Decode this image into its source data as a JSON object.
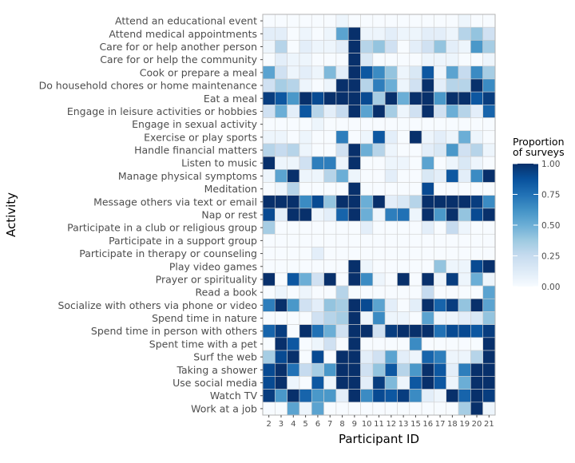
{
  "chart_data": {
    "type": "heatmap",
    "xlabel": "Participant ID",
    "ylabel": "Activity",
    "legend": {
      "title_line1": "Proportion",
      "title_line2": "of surveys",
      "ticks": [
        "1.00",
        "0.75",
        "0.50",
        "0.25",
        "0.00"
      ],
      "range": [
        0,
        1
      ],
      "placement": "right"
    },
    "colorscale": [
      "#f7fbff",
      "#deebf7",
      "#c6dbef",
      "#9ecae1",
      "#6baed6",
      "#4292c6",
      "#2171b5",
      "#08519c",
      "#08306b"
    ],
    "x": [
      "2",
      "3",
      "4",
      "5",
      "6",
      "7",
      "8",
      "9",
      "10",
      "11",
      "12",
      "13",
      "15",
      "16",
      "17",
      "18",
      "19",
      "20",
      "21"
    ],
    "y": [
      "Attend an educational event",
      "Attend medical appointments",
      "Care for or help another person",
      "Care for or help the community",
      "Cook or prepare a meal",
      "Do household chores or home maintenance",
      "Eat a meal",
      "Engage in leisure activities or hobbies",
      "Engage in sexual activity",
      "Exercise or play sports",
      "Handle financial matters",
      "Listen to music",
      "Manage physical symptoms",
      "Meditation",
      "Message others via text or email",
      "Nap or rest",
      "Participate in a club or religious group",
      "Participate in a support group",
      "Participate in therapy or counseling",
      "Play video games",
      "Prayer or spirituality",
      "Read a book",
      "Socialize with others via phone or video",
      "Spend time in nature",
      "Spend time in person with others",
      "Spent time with a pet",
      "Surf the web",
      "Taking a shower",
      "Use social media",
      "Watch TV",
      "Work at a job"
    ],
    "z": [
      [
        0.0,
        0.0,
        0.0,
        0.0,
        0.0,
        0.0,
        0.05,
        0.0,
        0.0,
        0.0,
        0.0,
        0.0,
        0.0,
        0.0,
        0.0,
        0.0,
        0.05,
        0.0,
        0.0
      ],
      [
        0.1,
        0.1,
        0.0,
        0.05,
        0.0,
        0.05,
        0.55,
        1.0,
        0.05,
        0.05,
        0.1,
        0.05,
        0.05,
        0.1,
        0.1,
        0.05,
        0.3,
        0.4,
        0.2
      ],
      [
        0.05,
        0.3,
        0.0,
        0.1,
        0.05,
        0.05,
        0.1,
        1.0,
        0.3,
        0.4,
        0.2,
        0.0,
        0.1,
        0.2,
        0.4,
        0.1,
        0.05,
        0.6,
        0.35
      ],
      [
        0.0,
        0.1,
        0.05,
        0.05,
        0.0,
        0.0,
        0.0,
        1.0,
        0.15,
        0.0,
        0.0,
        0.0,
        0.0,
        0.05,
        0.05,
        0.05,
        0.0,
        0.0,
        0.05
      ],
      [
        0.55,
        0.2,
        0.05,
        0.1,
        0.05,
        0.45,
        0.1,
        1.0,
        0.85,
        0.65,
        0.4,
        0.05,
        0.15,
        0.85,
        0.05,
        0.55,
        0.25,
        0.65,
        0.35
      ],
      [
        0.2,
        0.35,
        0.3,
        0.05,
        0.0,
        0.05,
        1.0,
        1.0,
        0.3,
        0.7,
        0.5,
        0.05,
        0.2,
        1.0,
        0.1,
        0.3,
        0.3,
        1.0,
        0.65
      ],
      [
        0.95,
        0.85,
        0.6,
        1.0,
        0.9,
        1.0,
        1.0,
        1.0,
        0.9,
        0.35,
        1.0,
        0.5,
        1.0,
        1.0,
        0.6,
        1.0,
        1.0,
        0.85,
        0.95
      ],
      [
        0.2,
        0.5,
        0.1,
        0.85,
        0.3,
        0.1,
        0.25,
        1.0,
        0.55,
        1.0,
        0.35,
        0.05,
        0.2,
        1.0,
        0.2,
        0.5,
        0.3,
        0.1,
        0.8
      ],
      [
        0.0,
        0.0,
        0.0,
        0.0,
        0.05,
        0.0,
        0.0,
        0.0,
        0.0,
        0.0,
        0.0,
        0.0,
        0.0,
        0.0,
        0.0,
        0.0,
        0.0,
        0.0,
        0.0
      ],
      [
        0.05,
        0.05,
        0.0,
        0.05,
        0.0,
        0.0,
        0.7,
        0.0,
        0.05,
        0.85,
        0.1,
        0.0,
        1.0,
        0.05,
        0.1,
        0.05,
        0.5,
        0.05,
        0.0
      ],
      [
        0.3,
        0.25,
        0.3,
        0.05,
        0.0,
        0.0,
        0.2,
        1.0,
        0.5,
        0.3,
        0.05,
        0.0,
        0.0,
        0.1,
        0.15,
        0.6,
        0.2,
        0.3,
        0.05
      ],
      [
        1.0,
        0.05,
        0.05,
        0.2,
        0.7,
        0.7,
        0.05,
        1.0,
        0.0,
        0.0,
        0.05,
        0.05,
        0.0,
        0.55,
        0.0,
        0.05,
        0.15,
        0.05,
        0.0
      ],
      [
        0.05,
        0.55,
        1.0,
        0.05,
        0.05,
        0.3,
        0.5,
        0.05,
        0.0,
        0.0,
        0.1,
        0.0,
        0.0,
        0.15,
        0.1,
        0.85,
        0.1,
        0.65,
        1.0
      ],
      [
        0.0,
        0.05,
        0.3,
        0.0,
        0.0,
        0.0,
        0.0,
        1.0,
        0.0,
        0.0,
        0.0,
        0.0,
        0.0,
        0.9,
        0.0,
        0.0,
        0.0,
        0.0,
        0.0
      ],
      [
        1.0,
        1.0,
        1.0,
        0.65,
        0.9,
        0.4,
        1.0,
        1.0,
        0.5,
        1.0,
        0.1,
        0.15,
        0.3,
        1.0,
        1.0,
        1.0,
        1.0,
        0.95,
        0.65
      ],
      [
        0.9,
        0.1,
        1.0,
        1.0,
        0.05,
        0.1,
        0.8,
        1.0,
        0.5,
        0.05,
        0.7,
        0.75,
        0.05,
        1.0,
        0.6,
        1.0,
        0.4,
        0.9,
        1.0
      ],
      [
        0.35,
        0.0,
        0.0,
        0.0,
        0.0,
        0.0,
        0.0,
        0.0,
        0.1,
        0.0,
        0.0,
        0.0,
        0.0,
        0.1,
        0.0,
        0.25,
        0.05,
        0.0,
        0.0
      ],
      [
        0.0,
        0.0,
        0.0,
        0.0,
        0.0,
        0.0,
        0.0,
        0.0,
        0.0,
        0.0,
        0.0,
        0.0,
        0.0,
        0.0,
        0.0,
        0.0,
        0.0,
        0.0,
        0.0
      ],
      [
        0.0,
        0.0,
        0.0,
        0.0,
        0.1,
        0.0,
        0.0,
        0.0,
        0.0,
        0.0,
        0.0,
        0.0,
        0.0,
        0.0,
        0.0,
        0.0,
        0.0,
        0.0,
        0.0
      ],
      [
        0.0,
        0.0,
        0.0,
        0.0,
        0.0,
        0.0,
        0.0,
        1.0,
        0.05,
        0.0,
        0.0,
        0.0,
        0.0,
        0.0,
        0.4,
        0.05,
        0.05,
        0.9,
        1.0
      ],
      [
        1.0,
        0.0,
        0.85,
        0.5,
        0.2,
        1.0,
        0.0,
        1.0,
        0.65,
        0.05,
        0.0,
        1.0,
        0.0,
        1.0,
        0.05,
        0.95,
        0.05,
        0.5,
        0.05
      ],
      [
        0.0,
        0.05,
        0.0,
        0.05,
        0.0,
        0.0,
        0.3,
        0.0,
        0.0,
        0.0,
        0.0,
        0.0,
        0.0,
        0.25,
        0.0,
        0.0,
        0.0,
        0.0,
        0.55
      ],
      [
        0.7,
        1.0,
        0.6,
        0.2,
        0.1,
        0.4,
        0.35,
        1.0,
        0.9,
        0.55,
        0.1,
        0.0,
        0.1,
        1.0,
        0.8,
        0.95,
        0.4,
        1.0,
        0.55
      ],
      [
        0.0,
        0.0,
        0.0,
        0.0,
        0.2,
        0.3,
        0.35,
        1.0,
        0.05,
        0.65,
        0.05,
        0.05,
        0.0,
        0.55,
        0.05,
        0.05,
        0.1,
        0.15,
        0.4
      ],
      [
        0.8,
        0.95,
        0.0,
        1.0,
        0.75,
        0.5,
        0.2,
        1.0,
        1.0,
        0.2,
        0.95,
        1.0,
        1.0,
        1.0,
        0.75,
        0.9,
        0.9,
        0.85,
        0.95
      ],
      [
        0.0,
        1.0,
        0.85,
        0.0,
        0.05,
        0.2,
        0.0,
        1.0,
        0.0,
        0.0,
        0.0,
        0.0,
        0.65,
        0.0,
        0.0,
        0.0,
        0.0,
        0.0,
        1.0
      ],
      [
        0.35,
        0.9,
        1.0,
        0.0,
        0.9,
        0.0,
        1.0,
        1.0,
        0.1,
        0.2,
        0.55,
        0.1,
        0.05,
        0.8,
        0.7,
        0.05,
        0.05,
        0.3,
        1.0
      ],
      [
        0.9,
        1.0,
        0.75,
        0.25,
        0.35,
        0.6,
        1.0,
        1.0,
        0.2,
        0.4,
        0.85,
        0.3,
        0.6,
        1.0,
        0.85,
        0.1,
        0.7,
        1.0,
        1.0
      ],
      [
        0.9,
        1.0,
        0.05,
        0.0,
        0.85,
        0.05,
        1.0,
        1.0,
        0.1,
        0.95,
        0.45,
        0.05,
        0.85,
        1.0,
        0.85,
        0.05,
        0.5,
        1.0,
        1.0
      ],
      [
        0.95,
        0.6,
        1.0,
        0.8,
        0.6,
        0.6,
        0.1,
        1.0,
        0.65,
        0.9,
        0.85,
        0.95,
        0.65,
        0.1,
        0.05,
        1.0,
        0.8,
        1.0,
        0.95
      ],
      [
        0.0,
        0.0,
        0.55,
        0.05,
        0.55,
        0.0,
        0.0,
        0.0,
        0.0,
        0.0,
        0.0,
        0.0,
        0.0,
        0.0,
        0.0,
        0.0,
        0.35,
        1.0,
        0.05
      ]
    ]
  }
}
